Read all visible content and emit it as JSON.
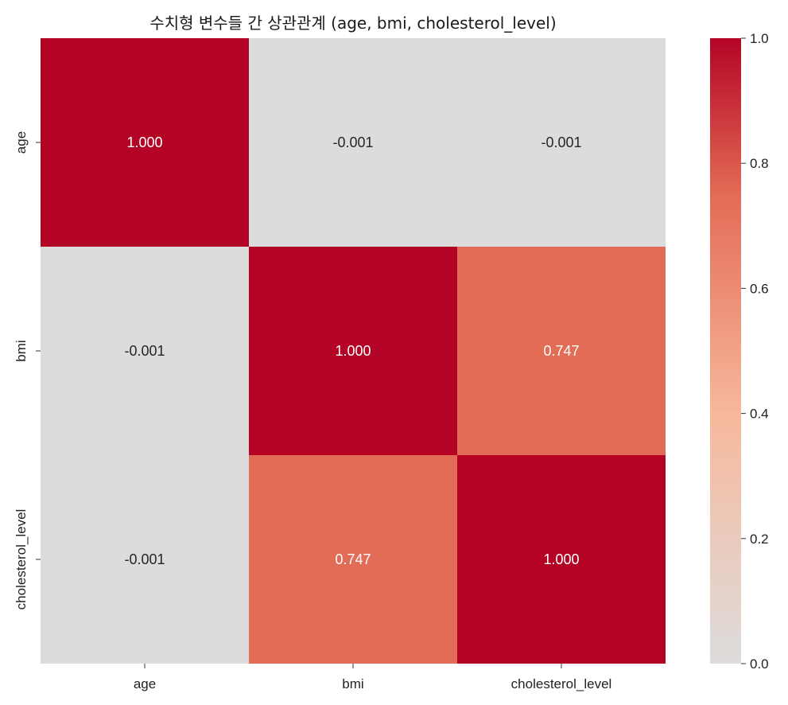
{
  "chart_data": {
    "type": "heatmap",
    "title": "수치형 변수들 간 상관관계 (age, bmi, cholesterol_level)",
    "x_categories": [
      "age",
      "bmi",
      "cholesterol_level"
    ],
    "y_categories": [
      "age",
      "bmi",
      "cholesterol_level"
    ],
    "values": [
      [
        1.0,
        -0.001,
        -0.001
      ],
      [
        -0.001,
        1.0,
        0.747
      ],
      [
        -0.001,
        0.747,
        1.0
      ]
    ],
    "cell_labels": [
      [
        "1.000",
        "-0.001",
        "-0.001"
      ],
      [
        "-0.001",
        "1.000",
        "0.747"
      ],
      [
        "-0.001",
        "0.747",
        "1.000"
      ]
    ],
    "colorbar": {
      "range": [
        0.0,
        1.0
      ],
      "ticks": [
        0.0,
        0.2,
        0.4,
        0.6,
        0.8,
        1.0
      ],
      "tick_labels": [
        "0.0",
        "0.2",
        "0.4",
        "0.6",
        "0.8",
        "1.0"
      ],
      "colormap": "coolwarm-centered-at-0",
      "colors": [
        "#dddcdc",
        "#f7b89c",
        "#e36b55",
        "#b40426"
      ]
    },
    "grid": false,
    "legend": "colorbar-right"
  }
}
